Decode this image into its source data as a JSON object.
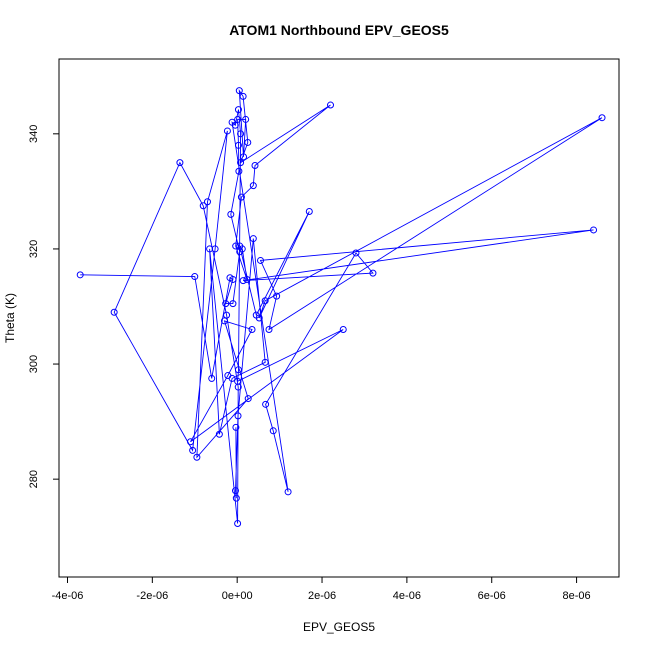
{
  "chart_data": {
    "type": "scatter",
    "title": "ATOM1 Northbound EPV_GEOS5",
    "xlabel": "EPV_GEOS5",
    "ylabel": "Theta (K)",
    "xlim": [
      -4.2e-06,
      9e-06
    ],
    "ylim": [
      263,
      353
    ],
    "xticks": [
      -4e-06,
      -2e-06,
      0,
      2e-06,
      4e-06,
      6e-06,
      8e-06
    ],
    "xtick_labels": [
      "-4e-06",
      "-2e-06",
      "0e+00",
      "2e-06",
      "4e-06",
      "6e-06",
      "8e-06"
    ],
    "yticks": [
      280,
      300,
      320,
      340
    ],
    "ytick_labels": [
      "280",
      "300",
      "320",
      "340"
    ],
    "grid": false,
    "series": [
      {
        "color": "#0000ff",
        "marker": "open-circle",
        "x": [
          -3.7e-06,
          -1e-06,
          -6e-07,
          -1.7e-07,
          -1e-07,
          -2.7e-07,
          -1e-07,
          6e-08,
          -1.5e-07,
          4e-08,
          3e-08,
          1e-08,
          2e-07,
          1.5e-07,
          5e-08,
          1.4e-07,
          2.5e-07,
          8e-08,
          2.2e-06,
          4.2e-07,
          3.8e-07,
          1e-07,
          -3.5e-08,
          2.3e-07,
          1.2e-07,
          6e-08,
          4.5e-07,
          1.7e-06,
          5.2e-07,
          6.6e-07,
          8.6e-06,
          7.5e-07,
          9.3e-07,
          5.5e-07,
          8.4e-06,
          1.4e-07,
          3.2e-06,
          2.8e-06,
          6.7e-07,
          8.5e-07,
          1.2e-06,
          -1.2e-07,
          -4.5e-08,
          3e-08,
          8e-08,
          3e-08,
          1e-08,
          2.5e-06,
          -1.1e-06,
          -2.2e-07,
          3.5e-07,
          -3e-07,
          2.6e-07,
          -9.5e-07,
          -7e-07,
          -2.3e-07,
          -5.2e-07,
          -1.05e-06,
          -2.9e-06,
          -1.35e-06,
          -8e-07,
          -2.5e-07,
          2.5e-08,
          1e-08,
          -6.5e-07,
          -4.2e-07,
          -1.2e-07,
          6.6e-07,
          3.8e-07,
          2e-08,
          -4e-08,
          -2e-08,
          -3e-08
        ],
        "y": [
          315.5,
          315.2,
          297.5,
          315.0,
          314.7,
          310.5,
          310.5,
          319.5,
          326.0,
          333.5,
          338.0,
          342.5,
          342.5,
          336.0,
          347.5,
          346.5,
          338.5,
          335.0,
          345.0,
          334.5,
          331.0,
          329.0,
          320.5,
          314.7,
          320.0,
          320.5,
          308.5,
          326.5,
          308.0,
          311.0,
          342.8,
          306.0,
          311.8,
          318.0,
          323.3,
          314.5,
          315.8,
          319.3,
          293.0,
          288.4,
          277.8,
          342.0,
          341.5,
          344.2,
          340.0,
          299.0,
          297.0,
          306.0,
          286.5,
          298.0,
          306.0,
          307.5,
          294.0,
          283.8,
          328.2,
          340.5,
          320.0,
          285.0,
          309.0,
          335.0,
          327.5,
          308.5,
          296.0,
          272.3,
          320.0,
          287.8,
          297.5,
          300.3,
          321.8,
          291.0,
          278.0,
          276.7,
          289.0
        ]
      }
    ]
  }
}
